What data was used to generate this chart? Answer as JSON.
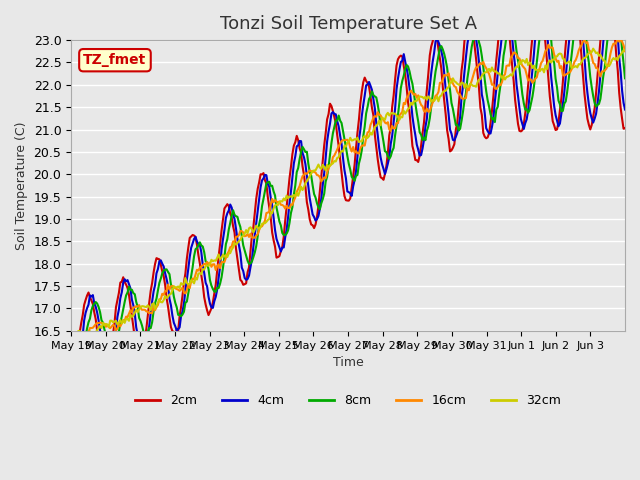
{
  "title": "Tonzi Soil Temperature Set A",
  "xlabel": "Time",
  "ylabel": "Soil Temperature (C)",
  "ylim": [
    16.5,
    23.0
  ],
  "yticks": [
    16.5,
    17.0,
    17.5,
    18.0,
    18.5,
    19.0,
    19.5,
    20.0,
    20.5,
    21.0,
    21.5,
    22.0,
    22.5,
    23.0
  ],
  "xtick_labels": [
    "May 19",
    "May 20",
    "May 21",
    "May 22",
    "May 23",
    "May 24",
    "May 25",
    "May 26",
    "May 27",
    "May 28",
    "May 29",
    "May 30",
    "May 31",
    "Jun 1",
    "Jun 2",
    "Jun 3"
  ],
  "series_colors": [
    "#cc0000",
    "#0000cc",
    "#00aa00",
    "#ff8800",
    "#cccc00"
  ],
  "series_labels": [
    "2cm",
    "4cm",
    "8cm",
    "16cm",
    "32cm"
  ],
  "line_widths": [
    1.5,
    1.5,
    1.5,
    1.5,
    1.5
  ],
  "bg_color": "#e8e8e8",
  "annotation_text": "TZ_fmet",
  "annotation_bg": "#ffffcc",
  "annotation_border": "#cc0000",
  "grid_color": "#ffffff",
  "title_fontsize": 13,
  "title_color": "#333333",
  "axis_label_fontsize": 9,
  "tick_fontsize": 9,
  "xtick_fontsize": 8,
  "legend_fontsize": 9
}
